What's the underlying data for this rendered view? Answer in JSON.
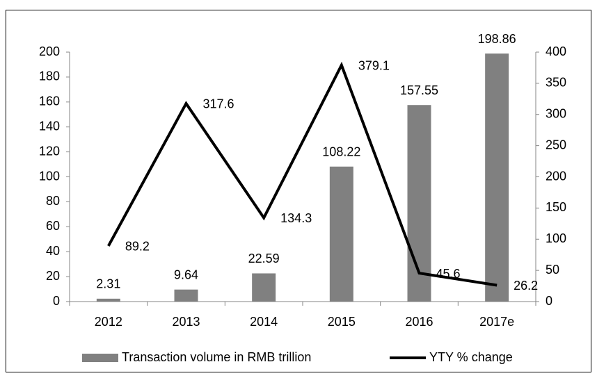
{
  "chart_data": {
    "type": "bar",
    "categories": [
      "2012",
      "2013",
      "2014",
      "2015",
      "2016",
      "2017e"
    ],
    "series": [
      {
        "name": "Transaction volume in RMB trillion",
        "type": "bar",
        "color": "#808080",
        "values": [
          2.31,
          9.64,
          22.59,
          108.22,
          157.55,
          198.86
        ]
      },
      {
        "name": "YTY % change",
        "type": "line",
        "axis": "y2",
        "color": "#000000",
        "values": [
          89.2,
          317.6,
          134.3,
          379.1,
          45.6,
          26.2
        ]
      }
    ],
    "ylim": [
      0,
      200
    ],
    "yticks": [
      0,
      20,
      40,
      60,
      80,
      100,
      120,
      140,
      160,
      180,
      200
    ],
    "y2lim": [
      0,
      400
    ],
    "y2ticks": [
      0,
      50,
      100,
      150,
      200,
      250,
      300,
      350,
      400
    ],
    "legend": "bottom"
  }
}
